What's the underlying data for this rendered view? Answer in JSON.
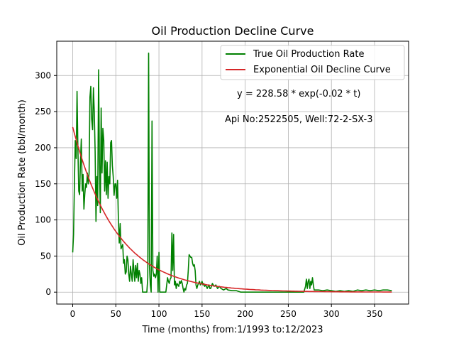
{
  "chart_data": {
    "type": "line",
    "title": "Oil Production Decline Curve",
    "xlabel": "Time (months) from:1/1993 to:12/2023",
    "ylabel": "Oil Production Rate (bbl/month)",
    "xlim": [
      -18.5,
      389.5
    ],
    "ylim": [
      -16.5,
      347.5
    ],
    "xticks": [
      0,
      50,
      100,
      150,
      200,
      250,
      300,
      350
    ],
    "yticks": [
      0,
      50,
      100,
      150,
      200,
      250,
      300
    ],
    "grid": true,
    "legend_position": "top-right",
    "annotations": [
      {
        "text": "y = 228.58 * exp(-0.02 * t)",
        "x": 190,
        "y": 272
      },
      {
        "text": "Api No:2522505, Well:72-2-SX-3",
        "x": 176,
        "y": 238
      }
    ],
    "series": [
      {
        "name": "True Oil Production Rate",
        "color": "#008000",
        "points": [
          [
            0,
            55
          ],
          [
            1,
            80
          ],
          [
            2,
            150
          ],
          [
            3,
            210
          ],
          [
            4,
            185
          ],
          [
            5,
            278
          ],
          [
            6,
            200
          ],
          [
            7,
            140
          ],
          [
            8,
            135
          ],
          [
            9,
            180
          ],
          [
            10,
            212
          ],
          [
            11,
            140
          ],
          [
            12,
            163
          ],
          [
            13,
            115
          ],
          [
            14,
            135
          ],
          [
            15,
            150
          ],
          [
            16,
            145
          ],
          [
            17,
            165
          ],
          [
            18,
            150
          ],
          [
            19,
            165
          ],
          [
            20,
            270
          ],
          [
            21,
            285
          ],
          [
            22,
            240
          ],
          [
            23,
            225
          ],
          [
            24,
            283
          ],
          [
            25,
            250
          ],
          [
            26,
            195
          ],
          [
            27,
            98
          ],
          [
            28,
            160
          ],
          [
            29,
            120
          ],
          [
            30,
            308
          ],
          [
            31,
            180
          ],
          [
            32,
            110
          ],
          [
            33,
            255
          ],
          [
            34,
            165
          ],
          [
            35,
            227
          ],
          [
            36,
            210
          ],
          [
            37,
            140
          ],
          [
            38,
            182
          ],
          [
            39,
            135
          ],
          [
            40,
            180
          ],
          [
            41,
            130
          ],
          [
            42,
            160
          ],
          [
            43,
            150
          ],
          [
            44,
            207
          ],
          [
            45,
            210
          ],
          [
            46,
            175
          ],
          [
            47,
            160
          ],
          [
            48,
            134
          ],
          [
            49,
            150
          ],
          [
            50,
            150
          ],
          [
            51,
            130
          ],
          [
            52,
            155
          ],
          [
            53,
            100
          ],
          [
            54,
            68
          ],
          [
            55,
            95
          ],
          [
            56,
            60
          ],
          [
            57,
            63
          ],
          [
            58,
            66
          ],
          [
            59,
            40
          ],
          [
            60,
            45
          ],
          [
            61,
            25
          ],
          [
            62,
            28
          ],
          [
            63,
            50
          ],
          [
            64,
            45
          ],
          [
            65,
            25
          ],
          [
            66,
            15
          ],
          [
            67,
            36
          ],
          [
            68,
            25
          ],
          [
            69,
            15
          ],
          [
            70,
            45
          ],
          [
            71,
            30
          ],
          [
            72,
            15
          ],
          [
            73,
            37
          ],
          [
            74,
            20
          ],
          [
            75,
            40
          ],
          [
            76,
            15
          ],
          [
            77,
            30
          ],
          [
            78,
            25
          ],
          [
            79,
            12
          ],
          [
            80,
            20
          ],
          [
            81,
            0
          ],
          [
            82,
            0
          ],
          [
            83,
            0
          ],
          [
            84,
            0
          ],
          [
            85,
            0
          ],
          [
            86,
            0
          ],
          [
            87,
            20
          ],
          [
            88,
            331
          ],
          [
            89,
            35
          ],
          [
            90,
            10
          ],
          [
            91,
            0
          ],
          [
            92,
            237
          ],
          [
            93,
            30
          ],
          [
            94,
            22
          ],
          [
            95,
            25
          ],
          [
            96,
            20
          ],
          [
            97,
            25
          ],
          [
            98,
            50
          ],
          [
            99,
            0
          ],
          [
            100,
            55
          ],
          [
            101,
            0
          ],
          [
            102,
            0
          ],
          [
            103,
            0
          ],
          [
            104,
            0
          ],
          [
            105,
            0
          ],
          [
            106,
            0
          ],
          [
            107,
            0
          ],
          [
            108,
            0
          ],
          [
            109,
            10
          ],
          [
            110,
            20
          ],
          [
            111,
            15
          ],
          [
            112,
            12
          ],
          [
            113,
            18
          ],
          [
            114,
            20
          ],
          [
            115,
            82
          ],
          [
            116,
            30
          ],
          [
            117,
            80
          ],
          [
            118,
            10
          ],
          [
            119,
            15
          ],
          [
            120,
            5
          ],
          [
            121,
            12
          ],
          [
            122,
            10
          ],
          [
            123,
            8
          ],
          [
            124,
            15
          ],
          [
            125,
            12
          ],
          [
            126,
            16
          ],
          [
            127,
            12
          ],
          [
            128,
            5
          ],
          [
            129,
            0
          ],
          [
            130,
            5
          ],
          [
            131,
            3
          ],
          [
            132,
            10
          ],
          [
            133,
            12
          ],
          [
            134,
            30
          ],
          [
            135,
            52
          ],
          [
            136,
            50
          ],
          [
            137,
            48
          ],
          [
            138,
            48
          ],
          [
            139,
            40
          ],
          [
            140,
            36
          ],
          [
            141,
            38
          ],
          [
            142,
            30
          ],
          [
            143,
            10
          ],
          [
            144,
            5
          ],
          [
            145,
            10
          ],
          [
            146,
            12
          ],
          [
            147,
            15
          ],
          [
            148,
            10
          ],
          [
            149,
            12
          ],
          [
            150,
            15
          ],
          [
            151,
            10
          ],
          [
            152,
            12
          ],
          [
            153,
            8
          ],
          [
            154,
            10
          ],
          [
            155,
            8
          ],
          [
            156,
            5
          ],
          [
            157,
            8
          ],
          [
            158,
            10
          ],
          [
            159,
            5
          ],
          [
            160,
            5
          ],
          [
            162,
            12
          ],
          [
            164,
            8
          ],
          [
            166,
            10
          ],
          [
            168,
            5
          ],
          [
            170,
            8
          ],
          [
            172,
            5
          ],
          [
            175,
            3
          ],
          [
            178,
            5
          ],
          [
            180,
            3
          ],
          [
            185,
            2
          ],
          [
            190,
            2
          ],
          [
            195,
            0
          ],
          [
            200,
            0
          ],
          [
            220,
            0
          ],
          [
            240,
            0
          ],
          [
            260,
            0
          ],
          [
            268,
            0
          ],
          [
            270,
            8
          ],
          [
            271,
            18
          ],
          [
            272,
            5
          ],
          [
            273,
            15
          ],
          [
            274,
            18
          ],
          [
            275,
            5
          ],
          [
            276,
            15
          ],
          [
            277,
            10
          ],
          [
            278,
            20
          ],
          [
            279,
            10
          ],
          [
            280,
            3
          ],
          [
            285,
            3
          ],
          [
            290,
            2
          ],
          [
            295,
            3
          ],
          [
            300,
            2
          ],
          [
            305,
            1
          ],
          [
            310,
            2
          ],
          [
            315,
            1
          ],
          [
            320,
            2
          ],
          [
            325,
            1
          ],
          [
            330,
            3
          ],
          [
            335,
            2
          ],
          [
            340,
            3
          ],
          [
            345,
            2
          ],
          [
            350,
            3
          ],
          [
            355,
            2
          ],
          [
            360,
            3
          ],
          [
            365,
            3
          ],
          [
            370,
            2
          ]
        ]
      },
      {
        "name": "Exponential Oil Decline Curve",
        "color": "#d62728",
        "fit": {
          "a": 228.58,
          "b": 0.02,
          "t_min": 0,
          "t_max": 370
        }
      }
    ]
  }
}
